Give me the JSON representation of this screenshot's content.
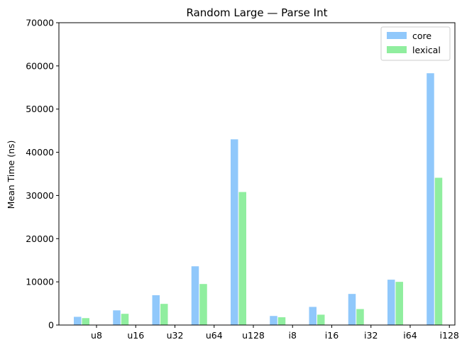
{
  "chart_data": {
    "type": "bar",
    "title": "Random Large — Parse Int",
    "xlabel": "",
    "ylabel": "Mean Time (ns)",
    "categories": [
      "u8",
      "u16",
      "u32",
      "u64",
      "u128",
      "i8",
      "i16",
      "i32",
      "i64",
      "i128"
    ],
    "series": [
      {
        "name": "core",
        "color": "#90c8fb",
        "values": [
          1900,
          3400,
          6900,
          13600,
          43000,
          2100,
          4200,
          7200,
          10500,
          58300
        ]
      },
      {
        "name": "lexical",
        "color": "#90ee9f",
        "values": [
          1600,
          2600,
          4900,
          9500,
          30800,
          1800,
          2400,
          3700,
          10000,
          34100
        ]
      }
    ],
    "ylim": [
      0,
      70000
    ],
    "yticks": [
      "0",
      "10000",
      "20000",
      "30000",
      "40000",
      "50000",
      "60000",
      "70000"
    ],
    "grid": false,
    "legend_position": "top-right"
  }
}
